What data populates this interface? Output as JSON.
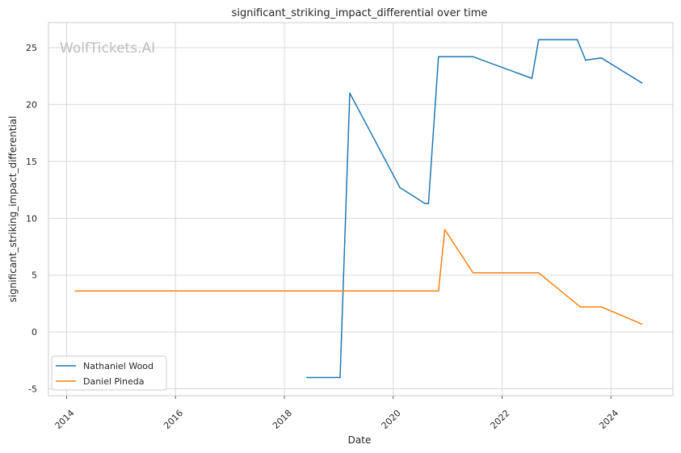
{
  "chart_data": {
    "type": "line",
    "title": "significant_striking_impact_differential over time",
    "xlabel": "Date",
    "ylabel": "significant_striking_impact_differential",
    "watermark": "WolfTickets.AI",
    "xlim": [
      "2013-09-01",
      "2025-02-20"
    ],
    "ylim": [
      -5.6,
      27.2
    ],
    "x_ticks": [
      "2014",
      "2016",
      "2018",
      "2020",
      "2022",
      "2024"
    ],
    "y_ticks": [
      -5,
      0,
      5,
      10,
      15,
      20,
      25
    ],
    "grid": true,
    "legend_position": "lower-left",
    "series": [
      {
        "name": "Nathaniel Wood",
        "color": "#1f77b4",
        "x": [
          "2018-06-01",
          "2019-01-10",
          "2019-03-16",
          "2020-02-15",
          "2020-08-01",
          "2020-08-25",
          "2020-10-31",
          "2021-06-20",
          "2022-07-20",
          "2022-09-03",
          "2023-05-20",
          "2023-07-15",
          "2023-10-28",
          "2024-07-27"
        ],
        "y": [
          -4.0,
          -4.0,
          21.0,
          12.7,
          11.3,
          11.3,
          24.2,
          24.2,
          22.3,
          25.7,
          25.7,
          23.9,
          24.1,
          21.9
        ]
      },
      {
        "name": "Daniel Pineda",
        "color": "#ff7f0e",
        "x": [
          "2014-03-01",
          "2020-10-31",
          "2020-12-12",
          "2021-06-20",
          "2022-09-03",
          "2023-04-15",
          "2023-06-10",
          "2023-10-28",
          "2024-07-27"
        ],
        "y": [
          3.6,
          3.6,
          9.0,
          5.2,
          5.2,
          2.8,
          2.2,
          2.2,
          0.7
        ]
      }
    ]
  }
}
